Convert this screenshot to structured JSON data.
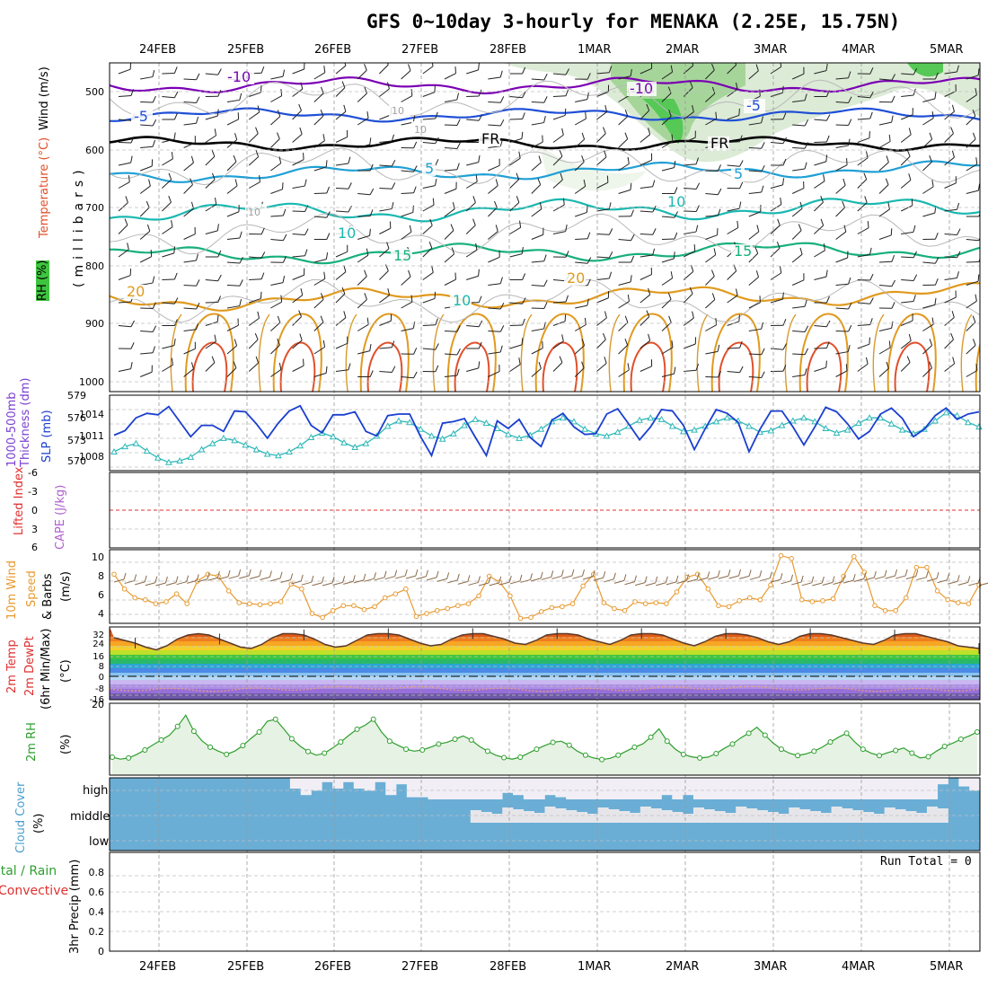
{
  "title": "GFS 0~10day 3-hourly for MENAKA (2.25E, 15.75N)",
  "dates": [
    "24FEB",
    "25FEB",
    "26FEB",
    "27FEB",
    "28FEB",
    "1MAR",
    "2MAR",
    "3MAR",
    "4MAR",
    "5MAR"
  ],
  "colors": {
    "temp_minus10": "#7b00b4",
    "temp_minus5": "#1f4fd6",
    "temp_fr": "#000000",
    "temp_5": "#1fa0d6",
    "temp_10": "#19b8b0",
    "temp_15": "#17b07a",
    "temp_20": "#e09a1e",
    "temp_hot": "#e0502a",
    "slp": "#1a3fd0",
    "thickness": "#30b8b8",
    "wind10": "#e89a30",
    "rh2m": "#2e9e2e",
    "cloud": "#6aaed6",
    "cloud_clear": "#f1eff5",
    "grid": "#999999"
  },
  "panels": {
    "upper": {
      "y_axis_label": "(millibars)",
      "levels": [
        "500",
        "600",
        "700",
        "800",
        "900",
        "1000"
      ],
      "label_rh": "RH (%)",
      "label_temp": "Temperature (°C)",
      "label_wind": "Wind (m/s)",
      "contour_labels": [
        "-10",
        "-5",
        "FR",
        "5",
        "10",
        "15",
        "20",
        "10",
        "5",
        "-5",
        "-10",
        "FR",
        "10",
        "15",
        "20",
        "10",
        "10",
        "10"
      ]
    },
    "slp": {
      "label_thickness": "1000-500mb Thickness (dm)",
      "label_slp": "SLP (mb)",
      "thickness_ticks": [
        "579",
        "576",
        "573",
        "570"
      ],
      "slp_ticks": [
        "1014",
        "1011",
        "1008"
      ]
    },
    "cape": {
      "label_li": "Lifted Index",
      "label_cape": "CAPE (J/kg)",
      "ticks": [
        "-6",
        "-3",
        "0",
        "3",
        "6"
      ]
    },
    "wind10": {
      "label_1": "10m Wind",
      "label_2": "Speed",
      "label_3": "& Barbs",
      "unit": "(m/s)",
      "ticks": [
        "10",
        "8",
        "6",
        "4"
      ]
    },
    "temp2m": {
      "label_1": "2m Temp",
      "label_2": "2m DewPt",
      "label_3": "(6hr Min/Max)",
      "unit": "(°C)",
      "ticks": [
        "32",
        "24",
        "16",
        "8",
        "0",
        "-8",
        "-16"
      ]
    },
    "rh2m": {
      "label": "2m RH",
      "unit": "(%)",
      "ticks": [
        "20"
      ]
    },
    "cloud": {
      "label": "Cloud Cover",
      "unit": "(%)",
      "layers": [
        "high",
        "middle",
        "low"
      ]
    },
    "precip": {
      "label_1": "Total / Rain",
      "label_2": "Convective",
      "label_3": "3hr Precip (mm)",
      "ticks": [
        "0.8",
        "0.6",
        "0.4",
        "0.2",
        "0"
      ],
      "run_total": "Run Total = 0"
    }
  },
  "chart_data": [
    {
      "type": "line",
      "title": "1000-500mb Thickness (dm)",
      "x_unit": "3-hourly steps from 23FEB 12Z",
      "ylim": [
        569,
        579
      ],
      "values": [
        571.5,
        572.2,
        572.6,
        571.6,
        570.7,
        570.1,
        570.3,
        570.8,
        571.8,
        572.6,
        573.3,
        573.0,
        572.4,
        571.8,
        571.2,
        571.0,
        571.5,
        572.3,
        573.4,
        574.0,
        573.5,
        572.7,
        572.1,
        572.6,
        573.6,
        574.9,
        575.6,
        575.4,
        574.5,
        573.6,
        573.2,
        573.9,
        575.0,
        575.8,
        575.3,
        574.6,
        573.8,
        573.3,
        573.7,
        574.5,
        575.5,
        576.0,
        575.5,
        574.5,
        573.9,
        573.6,
        574.1,
        574.9,
        575.7,
        576.0,
        575.8,
        574.9,
        574.2,
        574.4,
        574.9,
        575.5,
        576.0,
        575.6,
        574.9,
        574.1,
        574.3,
        575.0,
        575.6,
        576.0,
        575.5,
        574.6,
        574.0,
        574.4,
        575.3,
        576.0,
        576.0,
        575.2,
        574.4,
        573.9,
        574.5,
        575.6,
        576.7,
        576.3,
        575.4,
        574.8
      ]
    },
    {
      "type": "line",
      "title": "SLP (mb)",
      "ylim": [
        1006,
        1016
      ],
      "values": [
        1010.7,
        1011.3,
        1013.0,
        1013.6,
        1013.4,
        1014.5,
        1012.5,
        1010.5,
        1012.0,
        1012.0,
        1011.2,
        1013.9,
        1013.8,
        1012.2,
        1010.3,
        1012.3,
        1013.9,
        1014.6,
        1012.0,
        1011.0,
        1013.4,
        1013.4,
        1013.8,
        1011.2,
        1010.6,
        1013.3,
        1013.5,
        1013.5,
        1010.5,
        1008.0,
        1012.3,
        1012.5,
        1012.9,
        1010.4,
        1008.0,
        1012.6,
        1011.6,
        1012.8,
        1010.4,
        1009.2,
        1012.7,
        1013.6,
        1011.8,
        1010.8,
        1010.9,
        1013.5,
        1014.2,
        1012.2,
        1010.1,
        1011.8,
        1014.1,
        1013.9,
        1012.0,
        1008.8,
        1011.6,
        1014.1,
        1013.6,
        1012.4,
        1008.5,
        1011.5,
        1013.9,
        1013.9,
        1011.8,
        1009.4,
        1011.8,
        1014.4,
        1013.8,
        1012.2,
        1010.2,
        1011.2,
        1013.5,
        1014.3,
        1012.9,
        1010.5,
        1011.5,
        1013.3,
        1014.3,
        1012.8,
        1013.5,
        1013.8
      ]
    },
    {
      "type": "line",
      "title": "10m Wind Speed (m/s)",
      "ylim": [
        3,
        10.5
      ],
      "values": [
        8.0,
        6.5,
        5.6,
        5.4,
        5.0,
        5.2,
        6.0,
        5.0,
        7.3,
        8.0,
        7.8,
        6.3,
        5.1,
        5.0,
        4.9,
        5.0,
        5.2,
        7.0,
        6.5,
        4.0,
        3.6,
        4.3,
        4.8,
        4.8,
        4.4,
        4.7,
        5.6,
        6.0,
        6.5,
        3.7,
        4.0,
        4.3,
        4.5,
        4.8,
        5.0,
        5.8,
        7.8,
        7.2,
        5.8,
        3.5,
        3.6,
        4.2,
        4.6,
        4.7,
        5.0,
        6.8,
        8.0,
        5.1,
        4.5,
        4.3,
        5.2,
        5.0,
        5.1,
        5.0,
        6.2,
        7.7,
        8.0,
        6.5,
        4.8,
        4.7,
        5.3,
        5.6,
        5.4,
        6.9,
        9.9,
        9.6,
        5.4,
        5.2,
        5.3,
        5.5,
        7.8,
        9.8,
        8.2,
        4.8,
        4.3,
        4.3,
        5.6,
        8.7,
        8.7,
        6.3,
        5.4,
        5.1,
        5.0,
        6.9
      ]
    },
    {
      "type": "area",
      "title": "2m Temp (°C)",
      "ylim": [
        -18,
        36
      ],
      "values": [
        28,
        26,
        24,
        21,
        19,
        22,
        27,
        30,
        31,
        30,
        27,
        24,
        21,
        20,
        23,
        28,
        31,
        31,
        30,
        27,
        23,
        21,
        22,
        26,
        30,
        31,
        31,
        30,
        27,
        24,
        22,
        23,
        27,
        30,
        31,
        31,
        29,
        27,
        24,
        23,
        26,
        30,
        31,
        31,
        30,
        27,
        25,
        23,
        26,
        30,
        31,
        31,
        30,
        27,
        24,
        22,
        25,
        29,
        31,
        31,
        30,
        28,
        25,
        23,
        25,
        29,
        31,
        31,
        30,
        28,
        26,
        24,
        23,
        26,
        30,
        31,
        31,
        29,
        27,
        25,
        22,
        21,
        20
      ]
    },
    {
      "type": "area",
      "title": "2m RH (%)",
      "ylim": [
        4,
        22
      ],
      "values": [
        8.5,
        8.0,
        8.3,
        9.2,
        10.3,
        11.6,
        12.8,
        14.0,
        16.2,
        19.0,
        15.0,
        12.6,
        11.0,
        10.0,
        9.2,
        10.0,
        11.4,
        13.2,
        14.8,
        17.5,
        18.0,
        15.6,
        13.1,
        11.3,
        9.9,
        9.0,
        9.5,
        10.8,
        12.3,
        14.0,
        15.5,
        16.5,
        18.0,
        14.8,
        12.5,
        11.5,
        10.5,
        10.0,
        10.3,
        11.0,
        11.8,
        12.2,
        13.0,
        13.8,
        12.8,
        11.2,
        10.0,
        9.0,
        8.4,
        8.0,
        8.5,
        9.5,
        10.5,
        11.4,
        12.2,
        12.5,
        11.5,
        10.0,
        9.0,
        8.3,
        7.9,
        8.2,
        9.0,
        10.0,
        11.0,
        11.8,
        13.5,
        15.6,
        12.5,
        10.5,
        9.2,
        8.6,
        8.3,
        8.5,
        9.4,
        10.7,
        11.8,
        13.3,
        14.5,
        16.0,
        14.0,
        12.0,
        10.5,
        9.5,
        8.9,
        9.3,
        10.0,
        11.0,
        12.3,
        13.5,
        14.5,
        12.3,
        10.5,
        9.5,
        8.9,
        9.6,
        10.2,
        10.8,
        9.5,
        8.3,
        8.6,
        10.0,
        11.2,
        12.0,
        13.0,
        13.8,
        14.8
      ]
    },
    {
      "type": "table",
      "title": "Cloud Cover (%) — fraction of clear sky in high layer",
      "values": [
        0,
        0,
        0,
        0,
        0,
        0,
        0,
        0,
        0,
        0,
        0,
        0,
        0,
        0,
        0,
        0,
        0,
        0.5,
        0.8,
        0.6,
        0.2,
        0.5,
        0.2,
        0.5,
        0.6,
        0.2,
        0.8,
        0.3,
        0.9,
        0.9,
        1,
        1,
        1,
        1,
        1,
        1,
        1,
        0.7,
        0.8,
        1,
        1,
        0.8,
        0.9,
        1,
        1,
        1,
        1,
        1,
        1,
        1,
        1,
        1,
        0.8,
        1,
        0.8,
        1,
        1,
        1,
        1,
        1,
        1,
        1,
        1,
        1,
        1,
        1,
        1,
        1,
        1,
        1,
        1,
        1,
        1,
        1,
        1,
        1,
        1,
        1,
        0.3,
        0,
        0.4,
        0.6
      ]
    },
    {
      "type": "bar",
      "title": "3hr Precip (mm)",
      "ylim": [
        0,
        1.0
      ],
      "values": []
    }
  ]
}
